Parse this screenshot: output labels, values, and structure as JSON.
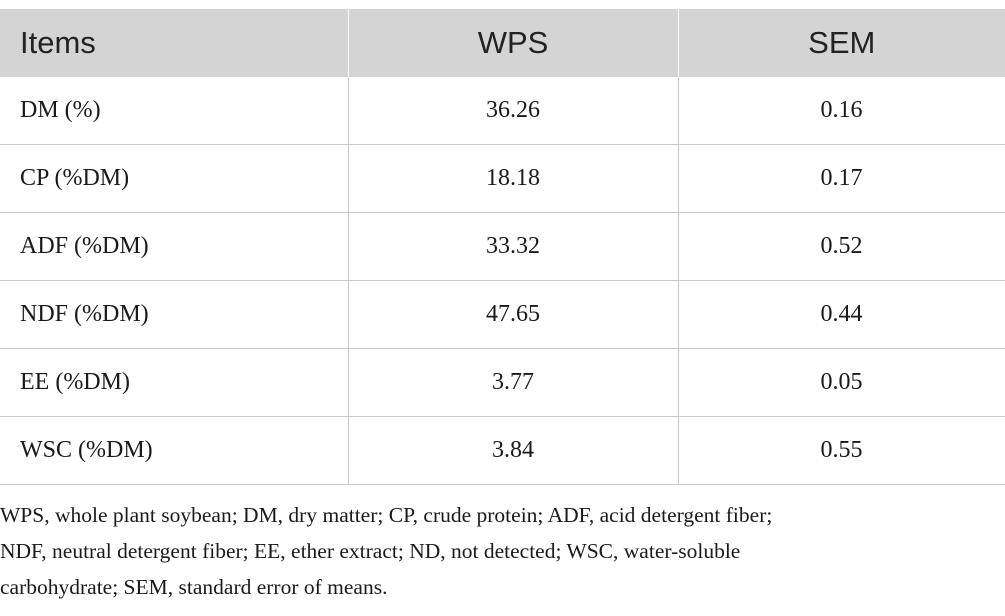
{
  "table": {
    "headers": [
      "Items",
      "WPS",
      "SEM"
    ],
    "rows": [
      [
        "DM (%)",
        "36.26",
        "0.16"
      ],
      [
        "CP (%DM)",
        "18.18",
        "0.17"
      ],
      [
        "ADF (%DM)",
        "33.32",
        "0.52"
      ],
      [
        "NDF (%DM)",
        "47.65",
        "0.44"
      ],
      [
        "EE (%DM)",
        "3.77",
        "0.05"
      ],
      [
        "WSC (%DM)",
        "3.84",
        "0.55"
      ]
    ]
  },
  "footnote": {
    "line1": "WPS, whole plant soybean; DM, dry matter; CP, crude protein; ADF, acid detergent fiber;",
    "line2": "NDF, neutral detergent fiber; EE, ether extract; ND, not detected; WSC, water-soluble",
    "line3": "carbohydrate; SEM, standard error of means."
  },
  "colors": {
    "header_background": "#d4d4d4",
    "border": "#c8c8c8",
    "text": "#1a1a1a"
  }
}
